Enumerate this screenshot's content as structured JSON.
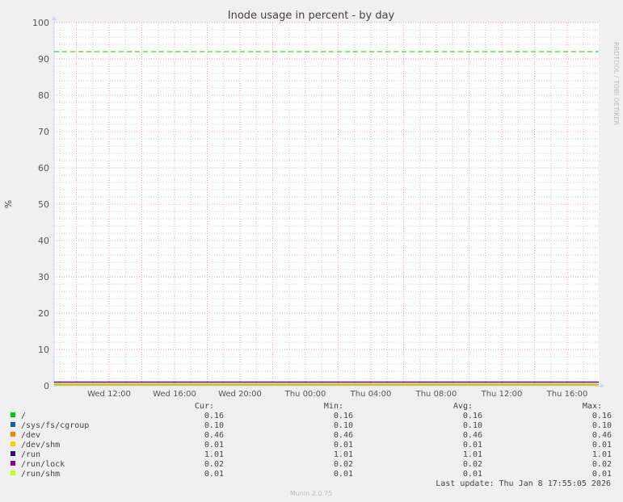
{
  "chart_data": {
    "type": "line",
    "title": "Inode usage in percent - by day",
    "ylabel": "%",
    "ylim": [
      0,
      100
    ],
    "yticks": [
      0,
      10,
      20,
      30,
      40,
      50,
      60,
      70,
      80,
      90,
      100
    ],
    "xlim": [
      "Wed 08:40",
      "Thu 17:55"
    ],
    "xticks": [
      "Wed 12:00",
      "Wed 16:00",
      "Wed 20:00",
      "Thu 00:00",
      "Thu 04:00",
      "Thu 08:00",
      "Thu 12:00",
      "Thu 16:00"
    ],
    "grid": true,
    "warning_line": {
      "value": 92,
      "color": "#00cc00",
      "style": "dashed"
    },
    "legend_headers": [
      "Cur:",
      "Min:",
      "Avg:",
      "Max:"
    ],
    "series": [
      {
        "name": "/",
        "color": "#00cc00",
        "cur": "0.16",
        "min": "0.16",
        "avg": "0.16",
        "max": "0.16",
        "value": 0.16
      },
      {
        "name": "/sys/fs/cgroup",
        "color": "#0066b3",
        "cur": "0.10",
        "min": "0.10",
        "avg": "0.10",
        "max": "0.10",
        "value": 0.1
      },
      {
        "name": "/dev",
        "color": "#ff8000",
        "cur": "0.46",
        "min": "0.46",
        "avg": "0.46",
        "max": "0.46",
        "value": 0.46
      },
      {
        "name": "/dev/shm",
        "color": "#ffcc00",
        "cur": "0.01",
        "min": "0.01",
        "avg": "0.01",
        "max": "0.01",
        "value": 0.01
      },
      {
        "name": "/run",
        "color": "#330099",
        "cur": "1.01",
        "min": "1.01",
        "avg": "1.01",
        "max": "1.01",
        "value": 1.01
      },
      {
        "name": "/run/lock",
        "color": "#990099",
        "cur": "0.02",
        "min": "0.02",
        "avg": "0.02",
        "max": "0.02",
        "value": 0.02
      },
      {
        "name": "/run/shm",
        "color": "#ccff00",
        "cur": "0.01",
        "min": "0.01",
        "avg": "0.01",
        "max": "0.01",
        "value": 0.01
      }
    ],
    "last_update": "Last update: Thu Jan  8 17:55:05 2026",
    "watermark": "RRDTOOL / TOBI OETIKER",
    "footer": "Munin 2.0.75"
  }
}
